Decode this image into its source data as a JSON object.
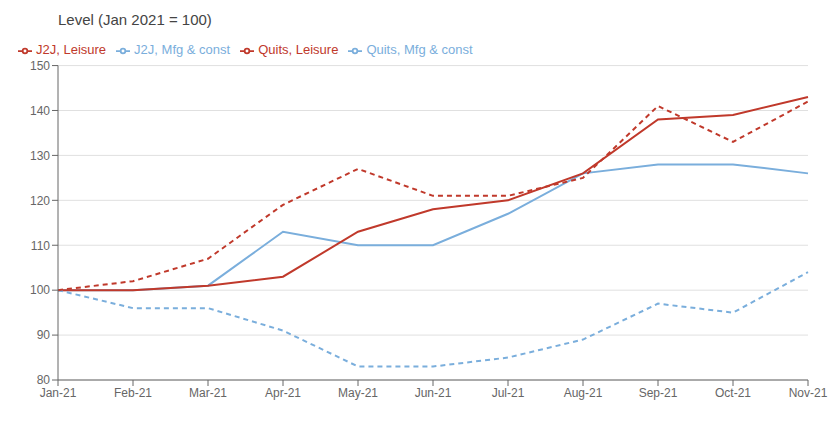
{
  "chart_data": {
    "type": "line",
    "title": "Level (Jan 2021 = 100)",
    "categories": [
      "Jan-21",
      "Feb-21",
      "Mar-21",
      "Apr-21",
      "May-21",
      "Jun-21",
      "Jul-21",
      "Aug-21",
      "Sep-21",
      "Oct-21",
      "Nov-21"
    ],
    "series": [
      {
        "name": "Quits, Mfg & const",
        "color": "#7aaedc",
        "line_style": "solid",
        "values": [
          100,
          100,
          101,
          113,
          110,
          110,
          117,
          126,
          128,
          128,
          126
        ]
      },
      {
        "name": "Quits, Leisure",
        "color": "#c0392b",
        "line_style": "solid",
        "values": [
          100,
          100,
          101,
          103,
          113,
          118,
          120,
          126,
          138,
          139,
          143
        ]
      },
      {
        "name": "J2J, Mfg & const",
        "color": "#7aaedc",
        "line_style": "dashed",
        "values": [
          100,
          96,
          96,
          91,
          83,
          83,
          85,
          89,
          97,
          95,
          104
        ]
      },
      {
        "name": "J2J, Leisure",
        "color": "#c0392b",
        "line_style": "dashed",
        "values": [
          100,
          102,
          107,
          119,
          127,
          121,
          121,
          125,
          141,
          133,
          142
        ]
      }
    ],
    "ylim": [
      80,
      150
    ],
    "yticks": [
      80,
      90,
      100,
      110,
      120,
      130,
      140,
      150
    ],
    "grid": true,
    "legend": "top"
  }
}
